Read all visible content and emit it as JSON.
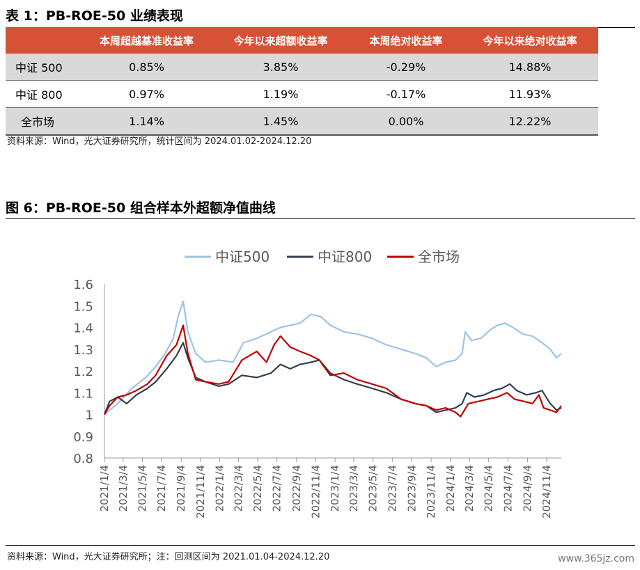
{
  "table_title": "表 1：PB-ROE-50 业绩表现",
  "table": {
    "headers": [
      "",
      "本周超越基准收益率",
      "今年以来超额收益率",
      "本周绝对收益率",
      "今年以来绝对收益率"
    ],
    "rows": [
      [
        "中证 500",
        "0.85%",
        "3.85%",
        "-0.29%",
        "14.88%"
      ],
      [
        "中证 800",
        "0.97%",
        "1.19%",
        "-0.17%",
        "11.93%"
      ],
      [
        "全市场",
        "1.14%",
        "1.45%",
        "0.00%",
        "12.22%"
      ]
    ]
  },
  "table_source": "资料来源：Wind，光大证券研究所，统计区间为 2024.01.02-2024.12.20",
  "figure_title": "图 6：PB-ROE-50 组合样本外超额净值曲线",
  "figure_source": "资料来源：Wind，光大证券研究所；注：回测区间为 2021.01.04-2024.12.20",
  "watermark": "www.365jz.com",
  "colors": {
    "header_bg": "#d75136",
    "zz500": "#9dc3e6",
    "zz800": "#333f50",
    "all": "#c00000"
  },
  "chart_data": {
    "type": "line",
    "title": "",
    "ylim": [
      0.8,
      1.6
    ],
    "yticks": [
      "0.8",
      "0.9",
      "1",
      "1.1",
      "1.2",
      "1.3",
      "1.4",
      "1.5",
      "1.6"
    ],
    "x_range": [
      "2021/1/4",
      "2024/12/20"
    ],
    "xticks": [
      "2021/1/4",
      "2021/3/4",
      "2021/5/4",
      "2021/7/4",
      "2021/9/4",
      "2021/11/4",
      "2022/1/4",
      "2022/3/4",
      "2022/5/4",
      "2022/7/4",
      "2022/9/4",
      "2022/11/4",
      "2023/1/4",
      "2023/3/4",
      "2023/5/4",
      "2023/7/4",
      "2023/9/4",
      "2023/11/4",
      "2024/1/4",
      "2024/3/4",
      "2024/5/4",
      "2024/7/4",
      "2024/9/4",
      "2024/11/4"
    ],
    "legend_position": "top",
    "grid": false,
    "series": [
      {
        "name": "中证500",
        "color": "#9dc3e6",
        "points": [
          [
            "2021/1/4",
            1.0
          ],
          [
            "2021/2/15",
            1.05
          ],
          [
            "2021/4/1",
            1.12
          ],
          [
            "2021/5/15",
            1.17
          ],
          [
            "2021/6/15",
            1.22
          ],
          [
            "2021/7/15",
            1.28
          ],
          [
            "2021/8/10",
            1.35
          ],
          [
            "2021/8/25",
            1.45
          ],
          [
            "2021/9/10",
            1.52
          ],
          [
            "2021/9/25",
            1.38
          ],
          [
            "2021/10/20",
            1.28
          ],
          [
            "2021/11/20",
            1.24
          ],
          [
            "2022/1/1",
            1.25
          ],
          [
            "2022/2/15",
            1.24
          ],
          [
            "2022/3/20",
            1.33
          ],
          [
            "2022/5/1",
            1.35
          ],
          [
            "2022/6/15",
            1.38
          ],
          [
            "2022/7/15",
            1.4
          ],
          [
            "2022/8/15",
            1.41
          ],
          [
            "2022/9/15",
            1.42
          ],
          [
            "2022/10/20",
            1.46
          ],
          [
            "2022/11/20",
            1.45
          ],
          [
            "2022/12/20",
            1.41
          ],
          [
            "2023/2/1",
            1.38
          ],
          [
            "2023/3/15",
            1.37
          ],
          [
            "2023/5/1",
            1.35
          ],
          [
            "2023/6/15",
            1.32
          ],
          [
            "2023/8/1",
            1.3
          ],
          [
            "2023/9/15",
            1.28
          ],
          [
            "2023/10/20",
            1.26
          ],
          [
            "2023/11/20",
            1.22
          ],
          [
            "2023/12/20",
            1.24
          ],
          [
            "2024/1/20",
            1.25
          ],
          [
            "2024/2/10",
            1.28
          ],
          [
            "2024/2/20",
            1.38
          ],
          [
            "2024/3/10",
            1.34
          ],
          [
            "2024/4/10",
            1.35
          ],
          [
            "2024/5/10",
            1.39
          ],
          [
            "2024/6/1",
            1.41
          ],
          [
            "2024/6/25",
            1.42
          ],
          [
            "2024/7/20",
            1.4
          ],
          [
            "2024/8/20",
            1.37
          ],
          [
            "2024/9/20",
            1.36
          ],
          [
            "2024/10/20",
            1.33
          ],
          [
            "2024/11/15",
            1.3
          ],
          [
            "2024/12/5",
            1.26
          ],
          [
            "2024/12/20",
            1.28
          ]
        ]
      },
      {
        "name": "中证800",
        "color": "#333f50",
        "points": [
          [
            "2021/1/4",
            1.0
          ],
          [
            "2021/1/20",
            1.06
          ],
          [
            "2021/2/15",
            1.08
          ],
          [
            "2021/3/15",
            1.05
          ],
          [
            "2021/4/15",
            1.09
          ],
          [
            "2021/5/20",
            1.12
          ],
          [
            "2021/6/15",
            1.15
          ],
          [
            "2021/7/20",
            1.21
          ],
          [
            "2021/8/20",
            1.27
          ],
          [
            "2021/9/10",
            1.33
          ],
          [
            "2021/9/25",
            1.26
          ],
          [
            "2021/10/20",
            1.17
          ],
          [
            "2021/11/20",
            1.15
          ],
          [
            "2022/1/1",
            1.13
          ],
          [
            "2022/2/1",
            1.14
          ],
          [
            "2022/3/15",
            1.18
          ],
          [
            "2022/5/1",
            1.17
          ],
          [
            "2022/6/15",
            1.19
          ],
          [
            "2022/7/15",
            1.23
          ],
          [
            "2022/8/15",
            1.21
          ],
          [
            "2022/9/15",
            1.23
          ],
          [
            "2022/10/20",
            1.24
          ],
          [
            "2022/11/15",
            1.25
          ],
          [
            "2022/12/20",
            1.19
          ],
          [
            "2023/2/1",
            1.16
          ],
          [
            "2023/3/15",
            1.14
          ],
          [
            "2023/5/1",
            1.12
          ],
          [
            "2023/6/15",
            1.1
          ],
          [
            "2023/8/1",
            1.07
          ],
          [
            "2023/9/15",
            1.05
          ],
          [
            "2023/10/20",
            1.04
          ],
          [
            "2023/11/20",
            1.01
          ],
          [
            "2023/12/20",
            1.02
          ],
          [
            "2024/1/20",
            1.03
          ],
          [
            "2024/2/10",
            1.05
          ],
          [
            "2024/2/25",
            1.1
          ],
          [
            "2024/3/20",
            1.08
          ],
          [
            "2024/4/20",
            1.09
          ],
          [
            "2024/5/20",
            1.11
          ],
          [
            "2024/6/15",
            1.12
          ],
          [
            "2024/7/10",
            1.14
          ],
          [
            "2024/8/1",
            1.11
          ],
          [
            "2024/9/1",
            1.09
          ],
          [
            "2024/10/1",
            1.1
          ],
          [
            "2024/10/20",
            1.11
          ],
          [
            "2024/11/15",
            1.05
          ],
          [
            "2024/12/5",
            1.02
          ],
          [
            "2024/12/20",
            1.03
          ]
        ]
      },
      {
        "name": "全市场",
        "color": "#c00000",
        "points": [
          [
            "2021/1/4",
            1.0
          ],
          [
            "2021/1/20",
            1.04
          ],
          [
            "2021/2/15",
            1.08
          ],
          [
            "2021/3/15",
            1.09
          ],
          [
            "2021/4/15",
            1.11
          ],
          [
            "2021/5/20",
            1.14
          ],
          [
            "2021/6/15",
            1.18
          ],
          [
            "2021/7/20",
            1.27
          ],
          [
            "2021/8/20",
            1.32
          ],
          [
            "2021/9/10",
            1.41
          ],
          [
            "2021/9/25",
            1.28
          ],
          [
            "2021/10/20",
            1.16
          ],
          [
            "2021/11/20",
            1.15
          ],
          [
            "2022/1/1",
            1.14
          ],
          [
            "2022/2/1",
            1.15
          ],
          [
            "2022/3/15",
            1.25
          ],
          [
            "2022/5/1",
            1.29
          ],
          [
            "2022/6/1",
            1.24
          ],
          [
            "2022/6/25",
            1.32
          ],
          [
            "2022/7/15",
            1.36
          ],
          [
            "2022/8/15",
            1.31
          ],
          [
            "2022/9/15",
            1.29
          ],
          [
            "2022/10/20",
            1.27
          ],
          [
            "2022/11/15",
            1.25
          ],
          [
            "2022/12/20",
            1.18
          ],
          [
            "2023/2/1",
            1.19
          ],
          [
            "2023/3/15",
            1.16
          ],
          [
            "2023/5/1",
            1.14
          ],
          [
            "2023/6/15",
            1.12
          ],
          [
            "2023/8/1",
            1.07
          ],
          [
            "2023/9/15",
            1.05
          ],
          [
            "2023/10/20",
            1.04
          ],
          [
            "2023/11/20",
            1.02
          ],
          [
            "2023/12/20",
            1.03
          ],
          [
            "2024/1/20",
            1.01
          ],
          [
            "2024/2/5",
            0.99
          ],
          [
            "2024/3/1",
            1.05
          ],
          [
            "2024/4/1",
            1.06
          ],
          [
            "2024/5/1",
            1.07
          ],
          [
            "2024/6/1",
            1.08
          ],
          [
            "2024/7/1",
            1.1
          ],
          [
            "2024/7/25",
            1.07
          ],
          [
            "2024/8/25",
            1.06
          ],
          [
            "2024/9/20",
            1.05
          ],
          [
            "2024/10/10",
            1.09
          ],
          [
            "2024/10/25",
            1.03
          ],
          [
            "2024/11/15",
            1.02
          ],
          [
            "2024/12/5",
            1.01
          ],
          [
            "2024/12/20",
            1.04
          ]
        ]
      }
    ]
  }
}
